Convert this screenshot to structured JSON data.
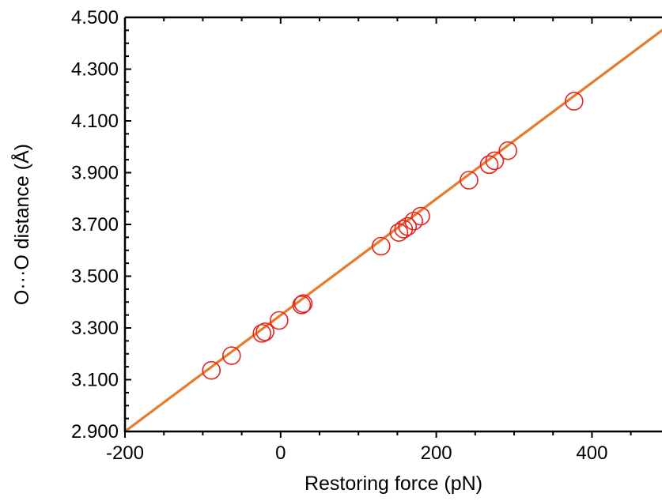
{
  "chart_data": {
    "type": "scatter",
    "xlabel": "Restoring force  (pN)",
    "ylabel": "O···O distance (Å)",
    "xlim": [
      -200,
      490
    ],
    "ylim": [
      2.9,
      4.5
    ],
    "x_ticks": [
      {
        "value": -200,
        "label": "-200"
      },
      {
        "value": 0,
        "label": "0"
      },
      {
        "value": 200,
        "label": "200"
      },
      {
        "value": 400,
        "label": "400"
      }
    ],
    "y_ticks": [
      {
        "value": 2.9,
        "label": "2.900"
      },
      {
        "value": 3.1,
        "label": "3.100"
      },
      {
        "value": 3.3,
        "label": "3.300"
      },
      {
        "value": 3.5,
        "label": "3.500"
      },
      {
        "value": 3.7,
        "label": "3.700"
      },
      {
        "value": 3.9,
        "label": "3.900"
      },
      {
        "value": 4.1,
        "label": "4.100"
      },
      {
        "value": 4.3,
        "label": "4.300"
      },
      {
        "value": 4.5,
        "label": "4.500"
      }
    ],
    "grid": false,
    "series": [
      {
        "marker": "open-circle",
        "color": "#e8231e",
        "points": [
          {
            "x": -89,
            "y": 3.136
          },
          {
            "x": -63,
            "y": 3.193
          },
          {
            "x": -24,
            "y": 3.279
          },
          {
            "x": -20,
            "y": 3.285
          },
          {
            "x": -2,
            "y": 3.329
          },
          {
            "x": 27,
            "y": 3.389
          },
          {
            "x": 29,
            "y": 3.394
          },
          {
            "x": 129,
            "y": 3.616
          },
          {
            "x": 152,
            "y": 3.669
          },
          {
            "x": 158,
            "y": 3.682
          },
          {
            "x": 163,
            "y": 3.692
          },
          {
            "x": 171,
            "y": 3.713
          },
          {
            "x": 180,
            "y": 3.732
          },
          {
            "x": 242,
            "y": 3.871
          },
          {
            "x": 268,
            "y": 3.931
          },
          {
            "x": 275,
            "y": 3.946
          },
          {
            "x": 292,
            "y": 3.985
          },
          {
            "x": 377,
            "y": 4.176
          }
        ]
      }
    ],
    "fit_line": {
      "color": "#e87a2c",
      "x": [
        -200,
        490
      ],
      "y": [
        2.9,
        4.45
      ]
    }
  }
}
